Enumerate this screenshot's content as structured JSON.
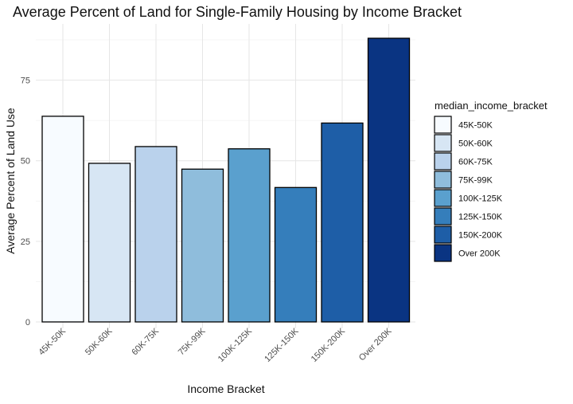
{
  "chart_data": {
    "type": "bar",
    "title": "Average Percent of Land for Single-Family Housing by Income Bracket",
    "xlabel": "Income Bracket",
    "ylabel": "Average Percent of Land Use",
    "categories": [
      "45K-50K",
      "50K-60K",
      "60K-75K",
      "75K-99K",
      "100K-125K",
      "125K-150K",
      "150K-200K",
      "Over 200K"
    ],
    "values": [
      63.8,
      49.2,
      54.4,
      47.4,
      53.7,
      41.7,
      61.7,
      88.0
    ],
    "colors": [
      "#f7fbff",
      "#d7e6f4",
      "#bad2ec",
      "#8fbddc",
      "#5aa0ce",
      "#357ebb",
      "#1e5ea7",
      "#0a3482"
    ],
    "ylim": [
      0,
      92
    ],
    "yticks": [
      0,
      25,
      50,
      75
    ],
    "grid": true,
    "legend": {
      "title": "median_income_bracket",
      "placement": "right",
      "labels": [
        "45K-50K",
        "50K-60K",
        "60K-75K",
        "75K-99K",
        "100K-125K",
        "125K-150K",
        "150K-200K",
        "Over 200K"
      ]
    }
  }
}
